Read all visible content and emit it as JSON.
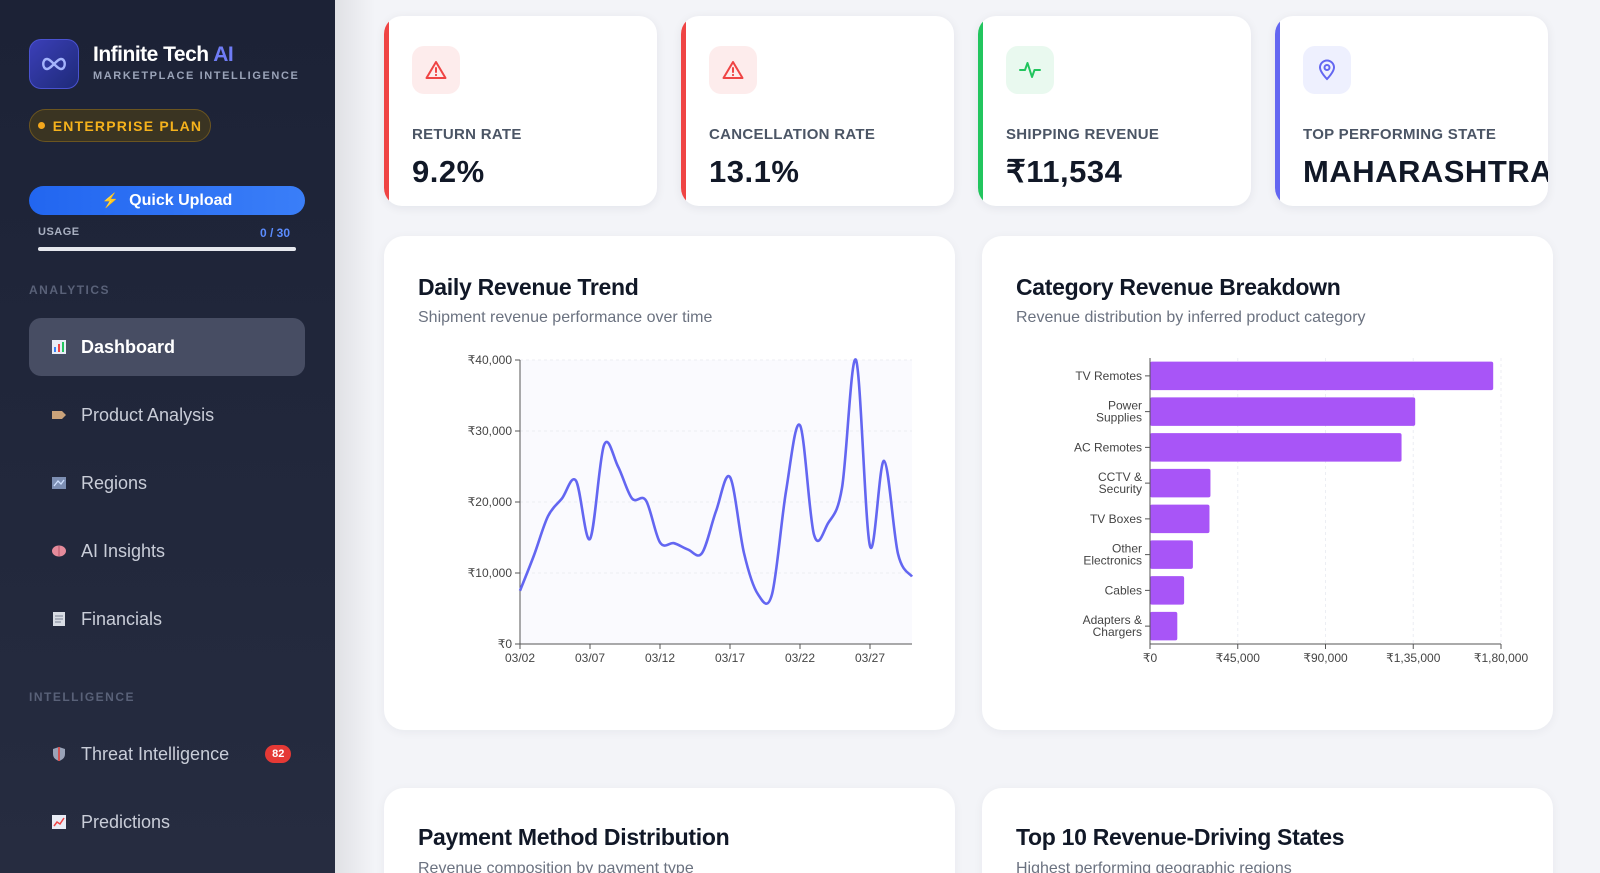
{
  "brand": {
    "name": "Infinite Tech",
    "name_accent": "AI",
    "subtitle": "MARKETPLACE INTELLIGENCE",
    "plan": "ENTERPRISE PLAN"
  },
  "sidebar": {
    "upload_label": "Quick Upload",
    "usage_label": "USAGE",
    "usage_value": "0 / 30",
    "usage_fraction": 0,
    "sections": {
      "analytics": "ANALYTICS",
      "intelligence": "INTELLIGENCE"
    },
    "analytics_items": [
      {
        "label": "Dashboard",
        "icon": "bar-chart-icon",
        "active": true
      },
      {
        "label": "Product Analysis",
        "icon": "tag-icon",
        "active": false
      },
      {
        "label": "Regions",
        "icon": "map-icon",
        "active": false
      },
      {
        "label": "AI Insights",
        "icon": "brain-icon",
        "active": false
      },
      {
        "label": "Financials",
        "icon": "ledger-icon",
        "active": false
      }
    ],
    "intelligence_items": [
      {
        "label": "Threat Intelligence",
        "icon": "shield-icon",
        "badge": "82"
      },
      {
        "label": "Predictions",
        "icon": "trend-chart-icon"
      }
    ]
  },
  "kpis": [
    {
      "label": "RETURN RATE",
      "value": "9.2%",
      "color": "#ef4444",
      "icon": "warning-icon"
    },
    {
      "label": "CANCELLATION RATE",
      "value": "13.1%",
      "color": "#ef4444",
      "icon": "warning-icon"
    },
    {
      "label": "SHIPPING REVENUE",
      "value": "₹11,534",
      "color": "#22c55e",
      "icon": "activity-icon"
    },
    {
      "label": "TOP PERFORMING STATE",
      "value": "MAHARASHTRA",
      "color": "#6366f1",
      "icon": "location-pin-icon"
    }
  ],
  "cards": {
    "daily": {
      "title": "Daily Revenue Trend",
      "subtitle": "Shipment revenue performance over time"
    },
    "category": {
      "title": "Category Revenue Breakdown",
      "subtitle": "Revenue distribution by inferred product category"
    },
    "payment": {
      "title": "Payment Method Distribution",
      "subtitle": "Revenue composition by payment type"
    },
    "states": {
      "title": "Top 10 Revenue-Driving States",
      "subtitle": "Highest performing geographic regions"
    }
  },
  "chart_data": [
    {
      "type": "line",
      "title": "Daily Revenue Trend",
      "x": [
        "03/02",
        "03/03",
        "03/04",
        "03/05",
        "03/06",
        "03/07",
        "03/08",
        "03/09",
        "03/10",
        "03/11",
        "03/12",
        "03/13",
        "03/14",
        "03/15",
        "03/16",
        "03/17",
        "03/18",
        "03/19",
        "03/20",
        "03/21",
        "03/22",
        "03/23",
        "03/24",
        "03/25",
        "03/26",
        "03/27",
        "03/28",
        "03/29",
        "03/30"
      ],
      "values": [
        7500,
        12500,
        18000,
        20500,
        23000,
        14800,
        28000,
        25000,
        20500,
        20200,
        14300,
        14200,
        13300,
        12800,
        18700,
        23500,
        12800,
        7000,
        7000,
        21500,
        30800,
        15400,
        17000,
        22000,
        40000,
        13800,
        25800,
        12700,
        9500
      ],
      "xticks": [
        "03/02",
        "03/07",
        "03/12",
        "03/17",
        "03/22",
        "03/27"
      ],
      "yticks": [
        "₹0",
        "₹10,000",
        "₹20,000",
        "₹30,000",
        "₹40,000"
      ],
      "ylim": [
        0,
        40000
      ],
      "color": "#6366f1"
    },
    {
      "type": "bar",
      "orientation": "horizontal",
      "title": "Category Revenue Breakdown",
      "categories": [
        [
          "TV Remotes"
        ],
        [
          "Power",
          "Supplies"
        ],
        [
          "AC Remotes"
        ],
        [
          "CCTV &",
          "Security"
        ],
        [
          "TV Boxes"
        ],
        [
          "Other",
          "Electronics"
        ],
        [
          "Cables"
        ],
        [
          "Adapters &",
          "Chargers"
        ]
      ],
      "values": [
        176000,
        136000,
        129000,
        31000,
        30500,
        22000,
        17500,
        14000
      ],
      "xticks": [
        "₹0",
        "₹45,000",
        "₹90,000",
        "₹1,35,000",
        "₹1,80,000"
      ],
      "xlim": [
        0,
        180000
      ],
      "color": "#a855f7"
    }
  ]
}
